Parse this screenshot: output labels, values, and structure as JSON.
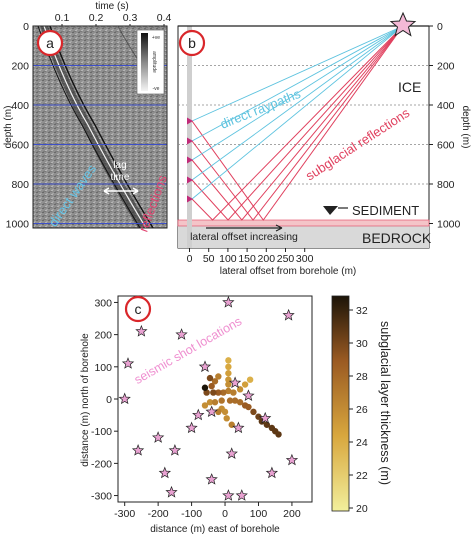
{
  "panel_a": {
    "letter": "a",
    "top_axis_label": "time (s)",
    "time_ticks": [
      "0.1",
      "0.2",
      "0.3",
      "0.4"
    ],
    "depth_ticks": [
      "0",
      "200",
      "400",
      "600",
      "800",
      "1000"
    ],
    "ylabel": "depth (m)",
    "colorbar_top": "+ve",
    "colorbar_mid": "amplitude",
    "colorbar_bottom": "-ve",
    "direct_waves": "direct waves",
    "lag_time": "lag\ntime",
    "reflections": "reflections"
  },
  "panel_b": {
    "letter": "b",
    "depth_ticks": [
      "0",
      "200",
      "400",
      "600",
      "800",
      "1000"
    ],
    "ylabel": "depth (m)",
    "x_ticks": [
      "0",
      "50",
      "100",
      "150",
      "200",
      "250",
      "300"
    ],
    "xlabel": "lateral offset from borehole (m)",
    "ice": "ICE",
    "direct_raypaths": "direct raypaths",
    "subglacial_reflections": "subglacial reflections",
    "sediment": "SEDIMENT",
    "bedrock": "BEDROCK",
    "lateral_offset": "lateral offset increasing",
    "colors": {
      "direct": "#5ec3df",
      "reflect": "#e0415f",
      "sediment": "#f4c4c8",
      "bedrock": "#d9d9d9"
    }
  },
  "panel_c": {
    "letter": "c",
    "xlabel": "distance (m) east of borehole",
    "ylabel": "distance (m) north of borehole",
    "x_ticks": [
      "-300",
      "-200",
      "-100",
      "0",
      "100",
      "200"
    ],
    "y_ticks": [
      "300",
      "200",
      "100",
      "0",
      "-100",
      "-200",
      "-300"
    ],
    "shot_label": "seismic shot locations",
    "colorbar_label": "subglacial layer thickness (m)",
    "colorbar_ticks": [
      "32",
      "30",
      "28",
      "26",
      "24",
      "22",
      "20"
    ],
    "colors": {
      "star": "#e9a2d2",
      "shot_label": "#ef8fd0"
    }
  },
  "chart_data": [
    {
      "type": "scatter",
      "panel": "c",
      "xlabel": "distance (m) east of borehole",
      "ylabel": "distance (m) north of borehole",
      "xlim": [
        -320,
        260
      ],
      "ylim": [
        -320,
        320
      ],
      "series": [
        {
          "name": "seismic shot locations",
          "marker": "star",
          "points": [
            [
              -300,
              0
            ],
            [
              -290,
              110
            ],
            [
              -260,
              -160
            ],
            [
              -250,
              210
            ],
            [
              -200,
              -120
            ],
            [
              -180,
              -230
            ],
            [
              -160,
              -290
            ],
            [
              -150,
              -160
            ],
            [
              -130,
              200
            ],
            [
              -100,
              -90
            ],
            [
              -80,
              -50
            ],
            [
              -60,
              100
            ],
            [
              -40,
              -250
            ],
            [
              -40,
              -40
            ],
            [
              10,
              300
            ],
            [
              10,
              -300
            ],
            [
              20,
              -170
            ],
            [
              30,
              50
            ],
            [
              40,
              -90
            ],
            [
              50,
              -300
            ],
            [
              70,
              10
            ],
            [
              120,
              -60
            ],
            [
              140,
              -230
            ],
            [
              190,
              260
            ],
            [
              200,
              -190
            ]
          ]
        },
        {
          "name": "subglacial layer thickness",
          "marker": "circle",
          "points": [
            [
              10,
              120,
              24
            ],
            [
              10,
              100,
              24.5
            ],
            [
              10,
              80,
              25
            ],
            [
              10,
              60,
              25.5
            ],
            [
              10,
              45,
              26
            ],
            [
              10,
              25,
              27
            ],
            [
              -5,
              20,
              28
            ],
            [
              -20,
              20,
              29
            ],
            [
              -35,
              20,
              30
            ],
            [
              -55,
              20,
              30
            ],
            [
              -40,
              40,
              29
            ],
            [
              -30,
              55,
              28
            ],
            [
              -20,
              70,
              27
            ],
            [
              -45,
              65,
              30
            ],
            [
              -60,
              35,
              33
            ],
            [
              -45,
              -10,
              26
            ],
            [
              -30,
              -10,
              27
            ],
            [
              -10,
              -5,
              27.5
            ],
            [
              15,
              -5,
              28
            ],
            [
              30,
              -5,
              28
            ],
            [
              45,
              -10,
              28
            ],
            [
              60,
              -20,
              29
            ],
            [
              70,
              -25,
              29
            ],
            [
              85,
              -40,
              30
            ],
            [
              100,
              -55,
              30.5
            ],
            [
              110,
              -70,
              31
            ],
            [
              125,
              -80,
              31
            ],
            [
              140,
              -90,
              31
            ],
            [
              150,
              -100,
              31
            ],
            [
              160,
              -110,
              31
            ],
            [
              25,
              20,
              27
            ],
            [
              45,
              30,
              26
            ],
            [
              60,
              45,
              25
            ],
            [
              75,
              60,
              24
            ],
            [
              -10,
              -30,
              26
            ],
            [
              0,
              -40,
              26
            ],
            [
              -20,
              -40,
              27
            ],
            [
              -60,
              -20,
              26
            ],
            [
              5,
              -60,
              26
            ],
            [
              20,
              -80,
              27
            ]
          ]
        }
      ],
      "colorbar": {
        "label": "subglacial layer thickness (m)",
        "range": [
          20,
          33
        ]
      }
    }
  ]
}
